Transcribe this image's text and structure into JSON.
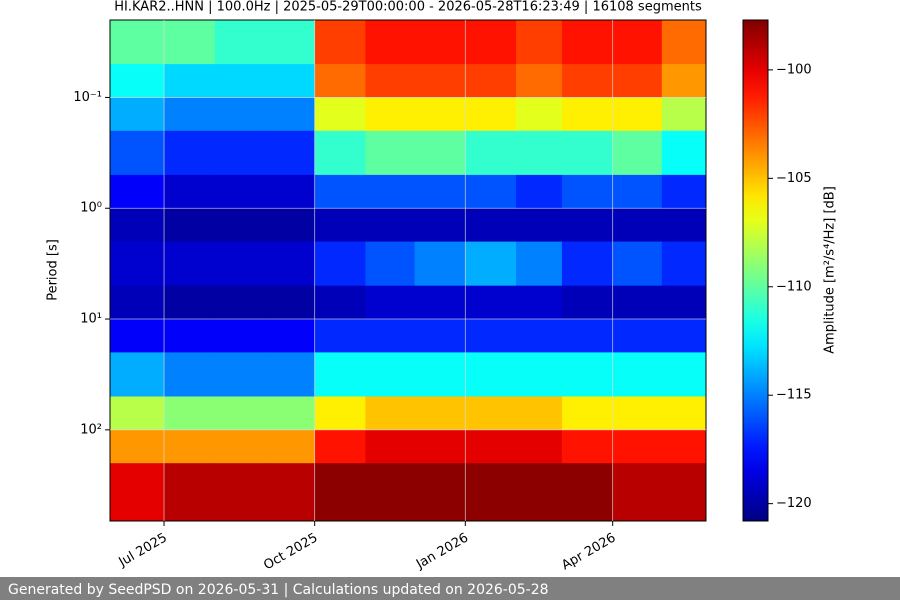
{
  "chart_data": {
    "type": "heatmap",
    "title": "HI.KAR2..HNN | 100.0Hz | 2025-05-29T00:00:00 - 2026-05-28T16:23:49 | 16108 segments",
    "y_label": "Period [s]",
    "colorbar_label": "Amplitude [m²/s⁴/Hz] [dB]",
    "footer": "Generated by SeedPSD on 2026-05-31 | Calculations updated on 2026-05-28",
    "x": [
      "2025-05-29",
      "2025-07-01",
      "2025-08-01",
      "2025-09-01",
      "2025-10-01",
      "2025-11-01",
      "2025-12-01",
      "2026-01-01",
      "2026-02-01",
      "2026-03-01",
      "2026-04-01",
      "2026-05-01",
      "2026-05-28"
    ],
    "y": [
      0.02,
      0.05,
      0.1,
      0.2,
      0.5,
      1,
      2,
      5,
      10,
      20,
      50,
      100,
      200,
      665
    ],
    "z": [
      [
        -110,
        -110,
        -111,
        -111,
        -102,
        -101,
        -101,
        -101,
        -102,
        -101,
        -101,
        -103
      ],
      [
        -112,
        -113,
        -113,
        -113,
        -103,
        -102,
        -102,
        -102,
        -103,
        -102,
        -102,
        -104
      ],
      [
        -114,
        -115,
        -115,
        -115,
        -107,
        -106,
        -106,
        -106,
        -107,
        -106,
        -106,
        -108
      ],
      [
        -116,
        -117,
        -117,
        -117,
        -111,
        -110,
        -110,
        -111,
        -111,
        -111,
        -110,
        -112
      ],
      [
        -118,
        -119,
        -119,
        -119,
        -116,
        -116,
        -116,
        -116,
        -117,
        -116,
        -116,
        -117
      ],
      [
        -119.5,
        -120,
        -120,
        -120,
        -119.5,
        -119.5,
        -119.5,
        -119.5,
        -119.5,
        -119.5,
        -119.5,
        -119.5
      ],
      [
        -119,
        -119,
        -119,
        -119,
        -117,
        -116,
        -115,
        -114,
        -115,
        -117,
        -116,
        -117
      ],
      [
        -119.5,
        -120,
        -120,
        -120,
        -119.5,
        -119,
        -119,
        -119,
        -119,
        -119.5,
        -119.5,
        -119.5
      ],
      [
        -118,
        -118,
        -118,
        -118,
        -117,
        -117,
        -117,
        -117,
        -117,
        -117,
        -117,
        -117
      ],
      [
        -114,
        -115,
        -115,
        -115,
        -112,
        -112,
        -112,
        -112,
        -112,
        -112,
        -112,
        -112
      ],
      [
        -108,
        -109,
        -109,
        -109,
        -106,
        -105,
        -105,
        -105,
        -105,
        -106,
        -106,
        -106
      ],
      [
        -104,
        -104,
        -104,
        -104,
        -101,
        -100,
        -100,
        -100,
        -100,
        -101,
        -101,
        -101
      ],
      [
        -100,
        -99,
        -99,
        -99,
        -98,
        -98,
        -98,
        -98,
        -98,
        -98,
        -99,
        -99
      ]
    ],
    "xlim": [
      "2025-05-29",
      "2026-05-28"
    ],
    "xticks": [
      {
        "value": "2025-07-01",
        "label": "Jul 2025"
      },
      {
        "value": "2025-10-01",
        "label": "Oct 2025"
      },
      {
        "value": "2026-01-01",
        "label": "Jan 2026"
      },
      {
        "value": "2026-04-01",
        "label": "Apr 2026"
      }
    ],
    "ylim": [
      0.02,
      665
    ],
    "y_log": true,
    "y_inverted": true,
    "yticks": [
      {
        "value": 0.1,
        "label": "10⁻¹"
      },
      {
        "value": 1,
        "label": "10⁰"
      },
      {
        "value": 10,
        "label": "10¹"
      },
      {
        "value": 100,
        "label": "10²"
      }
    ],
    "grid": true,
    "colormap": "jet",
    "clim": [
      -120.8,
      -97.7
    ],
    "cticks": [
      {
        "value": -120,
        "label": "−120"
      },
      {
        "value": -115,
        "label": "−115"
      },
      {
        "value": -110,
        "label": "−110"
      },
      {
        "value": -105,
        "label": "−105"
      },
      {
        "value": -100,
        "label": "−100"
      }
    ]
  }
}
